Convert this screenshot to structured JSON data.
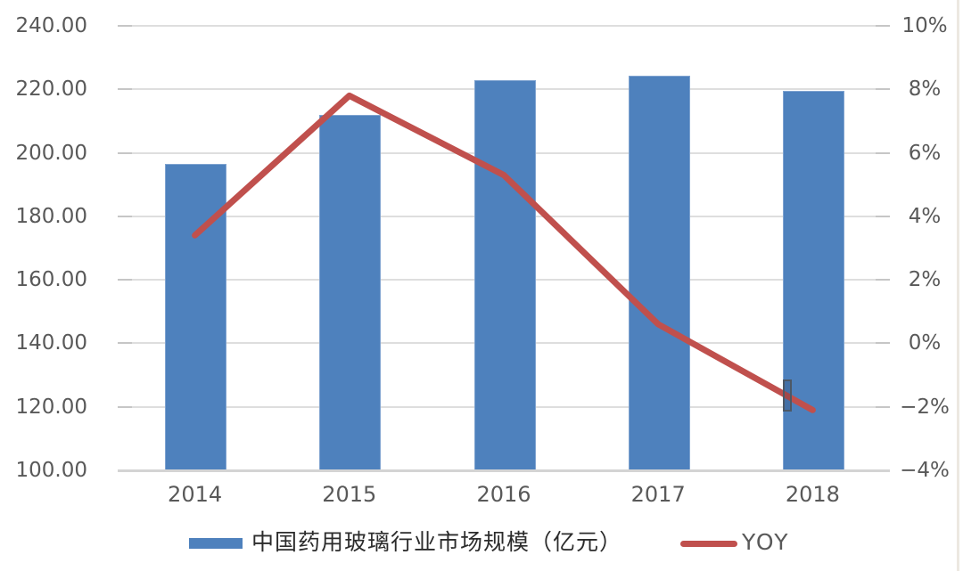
{
  "chart_data": {
    "type": "combo bar+line, dual axis",
    "categories": [
      "2014",
      "2015",
      "2016",
      "2017",
      "2018"
    ],
    "series": [
      {
        "name": "中国药用玻璃行业市场规模（亿元）",
        "type": "bar",
        "axis": "left",
        "color": "#4e81bd",
        "values": [
          196.5,
          212.0,
          222.8,
          224.2,
          219.4
        ]
      },
      {
        "name": "YOY",
        "type": "line",
        "axis": "right",
        "color": "#c0504d",
        "values": [
          3.4,
          7.8,
          5.3,
          0.6,
          -2.1
        ]
      }
    ],
    "left_axis": {
      "min": 100,
      "max": 240,
      "step": 20,
      "tick_labels": [
        "240.00",
        "220.00",
        "200.00",
        "180.00",
        "160.00",
        "140.00",
        "120.00",
        "100.00"
      ]
    },
    "right_axis": {
      "min": -4,
      "max": 10,
      "step": 2,
      "tick_labels": [
        "10%",
        "8%",
        "6%",
        "4%",
        "2%",
        "0%",
        "−2%",
        "−4%"
      ]
    },
    "grid": true,
    "legend_position": "bottom",
    "annotations": [
      {
        "type": "selection-marker",
        "series": "YOY",
        "near_category": "2018",
        "description": "small dark-bordered vertical rectangle on the YOY line at the left edge of the 2018 bar",
        "width": 10,
        "height": 36
      }
    ]
  },
  "colors": {
    "bar": "#4e81bd",
    "line": "#c0504d",
    "gridline": "#dedede",
    "tick": "#c6c6c6",
    "axis_line": "#d4d4d4",
    "label_text": "#595959"
  }
}
